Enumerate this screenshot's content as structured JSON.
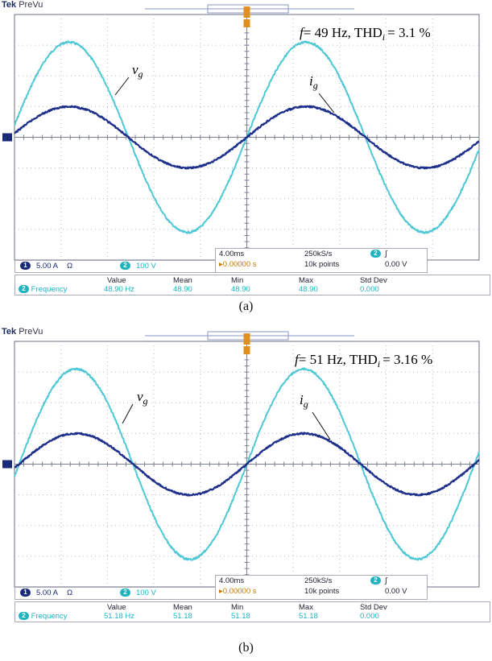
{
  "panels": [
    {
      "id": "a",
      "caption": "(a)",
      "scope_brand": "Tek",
      "scope_mode": "PreVu",
      "annotation": {
        "f": "f",
        "freq_text": "= 49 Hz, THD",
        "thd_sub": "i",
        "thd_text": "= 3.1 %"
      },
      "labels": {
        "vg": "v",
        "vg_sub": "g",
        "ig": "i",
        "ig_sub": "g"
      },
      "channel_bar": {
        "ch1": "1",
        "ch1_scale": "5.00 A",
        "ch1_unit": "Ω",
        "ch2": "2",
        "ch2_scale": "100 V"
      },
      "timebase": {
        "time_div": "4.00ms",
        "sample_rate": "250kS/s",
        "trigger_pos": "▸0.00000 s",
        "record": "10k points",
        "trig_ch": "2",
        "trig_slope": "∫",
        "trig_level": "0.00 V"
      },
      "measurements": {
        "headers": [
          "Value",
          "Mean",
          "Min",
          "Max",
          "Std Dev"
        ],
        "label": "Frequency",
        "ch": "2",
        "values": [
          "48.90 Hz",
          "48.90",
          "48.90",
          "48.90",
          "0.000"
        ]
      }
    },
    {
      "id": "b",
      "caption": "(b)",
      "scope_brand": "Tek",
      "scope_mode": "PreVu",
      "annotation": {
        "f": "f",
        "freq_text": "= 51 Hz, THD",
        "thd_sub": "i",
        "thd_text": "= 3.16 %"
      },
      "labels": {
        "vg": "v",
        "vg_sub": "g",
        "ig": "i",
        "ig_sub": "g"
      },
      "channel_bar": {
        "ch1": "1",
        "ch1_scale": "5.00 A",
        "ch1_unit": "Ω",
        "ch2": "2",
        "ch2_scale": "100 V"
      },
      "timebase": {
        "time_div": "4.00ms",
        "sample_rate": "250kS/s",
        "trigger_pos": "▸0.00000 s",
        "record": "10k points",
        "trig_ch": "2",
        "trig_slope": "∫",
        "trig_level": "0.00 V"
      },
      "measurements": {
        "headers": [
          "Value",
          "Mean",
          "Min",
          "Max",
          "Std Dev"
        ],
        "label": "Frequency",
        "ch": "2",
        "values": [
          "51.18 Hz",
          "51.18",
          "51.18",
          "51.18",
          "0.000"
        ]
      }
    }
  ],
  "chart_data": [
    {
      "type": "line",
      "title": "",
      "x_unit_per_div": "4.00ms",
      "x_divisions": 10,
      "y_divisions": 8,
      "grid": true,
      "series": [
        {
          "name": "v_g",
          "color": "#4fc8d6",
          "shape": "sine",
          "frequency_hz": 49,
          "peak_divisions": 3.1,
          "scale": "100 V/div"
        },
        {
          "name": "i_g",
          "color": "#1d2f8a",
          "shape": "sine",
          "frequency_hz": 49,
          "peak_divisions": 1.0,
          "scale": "5.00 A/div"
        }
      ]
    },
    {
      "type": "line",
      "title": "",
      "x_unit_per_div": "4.00ms",
      "x_divisions": 10,
      "y_divisions": 8,
      "grid": true,
      "series": [
        {
          "name": "v_g",
          "color": "#4fc8d6",
          "shape": "sine",
          "frequency_hz": 51,
          "peak_divisions": 3.1,
          "scale": "100 V/div"
        },
        {
          "name": "i_g",
          "color": "#1d2f8a",
          "shape": "sine",
          "frequency_hz": 51,
          "peak_divisions": 1.0,
          "scale": "5.00 A/div"
        }
      ]
    }
  ]
}
